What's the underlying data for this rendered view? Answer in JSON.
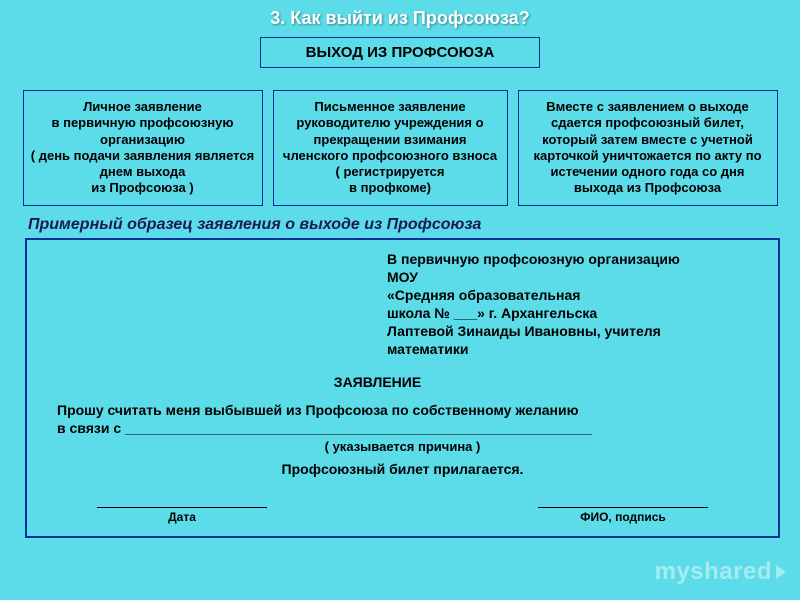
{
  "header": "3. Как выйти из Профсоюза?",
  "title_box": "ВЫХОД ИЗ ПРОФСОЮЗА",
  "boxes": {
    "b1": "Личное заявление\nв первичную профсоюзную организацию\n( день подачи заявления является днем выхода\nиз Профсоюза )",
    "b2": "Письменное заявление руководителю учреждения о прекращении взимания членского профсоюзного взноса ( регистрируется\nв профкоме)",
    "b3": "Вместе с заявлением о выходе сдается профсоюзный билет, который затем вместе с учетной карточкой уничтожается по акту по истечении одного года со дня выхода из Профсоюза"
  },
  "sample_label": "Примерный образец заявления о выходе из Профсоюза",
  "form": {
    "addr": "В первичную профсоюзную организацию МОУ\n«Средняя образовательная\n школа № ___» г. Архангельска\nЛаптевой Зинаиды Ивановны, учителя математики",
    "zayav": "ЗАЯВЛЕНИЕ",
    "body": "  Прошу считать меня выбывшей из Профсоюза по собственному желанию\nв связи с ____________________________________________________________",
    "reason": "( указывается причина )",
    "attach": "Профсоюзный билет прилагается.",
    "date_label": "Дата",
    "sign_label": "ФИО, подпись"
  },
  "watermark": "myshared"
}
